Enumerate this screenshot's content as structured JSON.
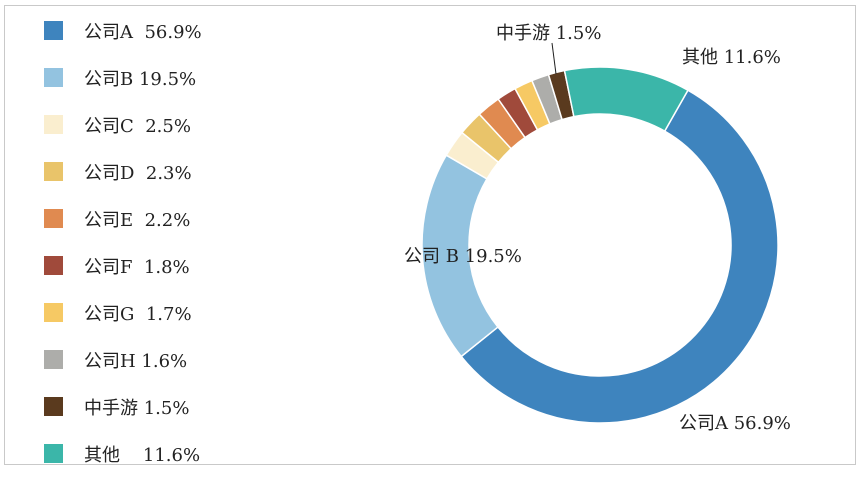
{
  "chart_data": {
    "type": "pie",
    "variant": "donut",
    "slices": [
      {
        "name": "公司A",
        "value": 56.9,
        "legend_label": "公司A  56.9%",
        "data_label": "公司A 56.9%",
        "color": "#3E84BE"
      },
      {
        "name": "公司B",
        "value": 19.5,
        "legend_label": "公司B 19.5%",
        "data_label": "公司 B 19.5%",
        "color": "#93C3E0"
      },
      {
        "name": "公司C",
        "value": 2.5,
        "legend_label": "公司C  2.5%",
        "data_label": "",
        "color": "#FAEECF"
      },
      {
        "name": "公司D",
        "value": 2.3,
        "legend_label": "公司D  2.3%",
        "data_label": "",
        "color": "#E9C46A"
      },
      {
        "name": "公司E",
        "value": 2.2,
        "legend_label": "公司E  2.2%",
        "data_label": "",
        "color": "#E08A50"
      },
      {
        "name": "公司F",
        "value": 1.8,
        "legend_label": "公司F  1.8%",
        "data_label": "",
        "color": "#A04A3B"
      },
      {
        "name": "公司G",
        "value": 1.7,
        "legend_label": "公司G  1.7%",
        "data_label": "",
        "color": "#F6C964"
      },
      {
        "name": "公司H",
        "value": 1.6,
        "legend_label": "公司H 1.6%",
        "data_label": "",
        "color": "#ADADAA"
      },
      {
        "name": "中手游",
        "value": 1.5,
        "legend_label": "中手游 1.5%",
        "data_label": "中手游 1.5%",
        "color": "#5A3A1E"
      },
      {
        "name": "其他",
        "value": 11.6,
        "legend_label": "其他    11.6%",
        "data_label": "其他  11.6%",
        "color": "#3BB6A9"
      }
    ],
    "legend_position": "left"
  }
}
